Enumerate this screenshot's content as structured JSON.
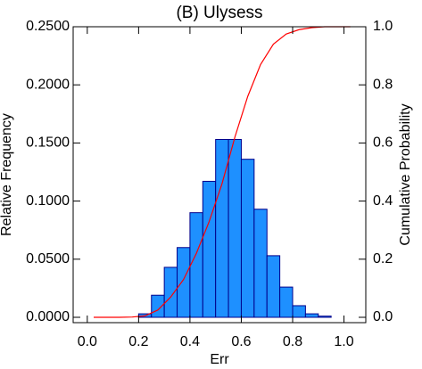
{
  "chart_data": {
    "type": "histogram",
    "title": "(B) Ulysess",
    "xlabel": "Err",
    "ylabel": "Relative Frequency",
    "y2label": "Cumulative Probability",
    "bins": [
      0.2,
      0.25,
      0.3,
      0.35,
      0.4,
      0.45,
      0.5,
      0.55,
      0.6,
      0.65,
      0.7,
      0.75,
      0.8,
      0.85,
      0.9,
      0.95
    ],
    "values": [
      0.003,
      0.019,
      0.043,
      0.06,
      0.09,
      0.117,
      0.153,
      0.153,
      0.136,
      0.093,
      0.053,
      0.026,
      0.01,
      0.003,
      0.001
    ],
    "color": "#1e90ff",
    "edgecolor": "#00008b",
    "series": [
      {
        "type": "line",
        "color": "#ff0000",
        "axis": "y2",
        "x": [
          0.025,
          0.075,
          0.125,
          0.175,
          0.225,
          0.275,
          0.325,
          0.375,
          0.425,
          0.475,
          0.525,
          0.575,
          0.625,
          0.675,
          0.725,
          0.775,
          0.825,
          0.875,
          0.925,
          0.975,
          1.025
        ],
        "values": [
          0,
          0,
          0,
          0.001,
          0.005,
          0.025,
          0.07,
          0.13,
          0.22,
          0.33,
          0.46,
          0.62,
          0.76,
          0.87,
          0.94,
          0.975,
          0.99,
          0.997,
          1.0,
          1.0,
          1.0
        ]
      }
    ],
    "xlim": [
      -0.055,
      1.085
    ],
    "ylim": [
      -0.0046,
      0.25
    ],
    "y2lim": [
      -0.0184,
      1.0
    ],
    "xticks": [
      {
        "value": 0,
        "label": "0.0"
      },
      0.2,
      0.4,
      0.6,
      0.8,
      {
        "value": 1,
        "label": "1.0"
      }
    ],
    "yticks": [
      {
        "value": 0,
        "label": "0.0000"
      },
      {
        "value": 0.05,
        "label": "0.0500"
      },
      {
        "value": 0.1,
        "label": "0.1000"
      },
      {
        "value": 0.15,
        "label": "0.1500"
      },
      {
        "value": 0.2,
        "label": "0.2000"
      },
      {
        "value": 0.25,
        "label": "0.2500"
      }
    ],
    "y2ticks": [
      {
        "value": 0,
        "label": "0.0"
      },
      0.2,
      0.4,
      0.6,
      0.8,
      {
        "value": 1,
        "label": "1.0"
      }
    ]
  }
}
